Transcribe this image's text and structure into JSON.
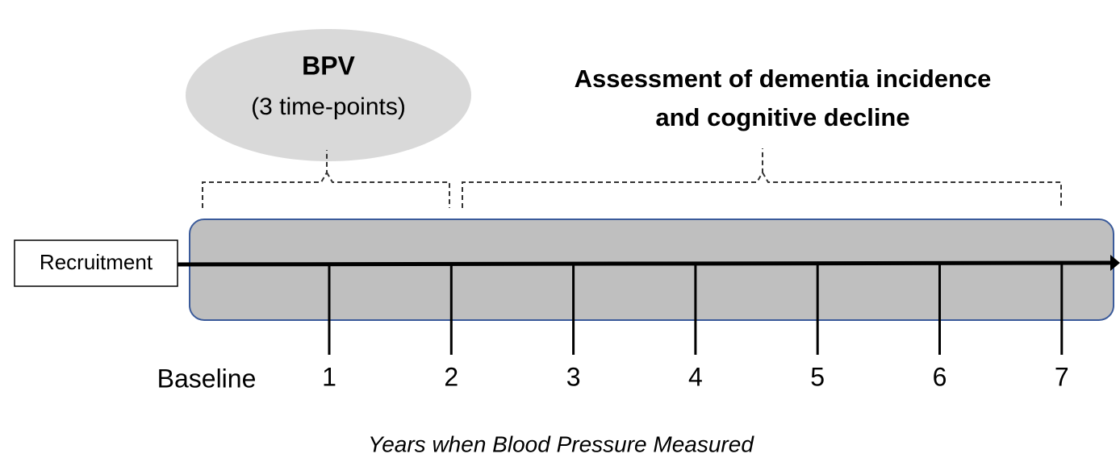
{
  "bpv": {
    "title": "BPV",
    "subtitle": "(3 time-points)"
  },
  "assessment": {
    "lines": [
      "Assessment of dementia incidence",
      "and cognitive decline"
    ]
  },
  "recruitment": "Recruitment",
  "ticks": [
    "Baseline",
    "1",
    "2",
    "3",
    "4",
    "5",
    "6",
    "7"
  ],
  "axis_label": "Years when Blood Pressure Measured"
}
